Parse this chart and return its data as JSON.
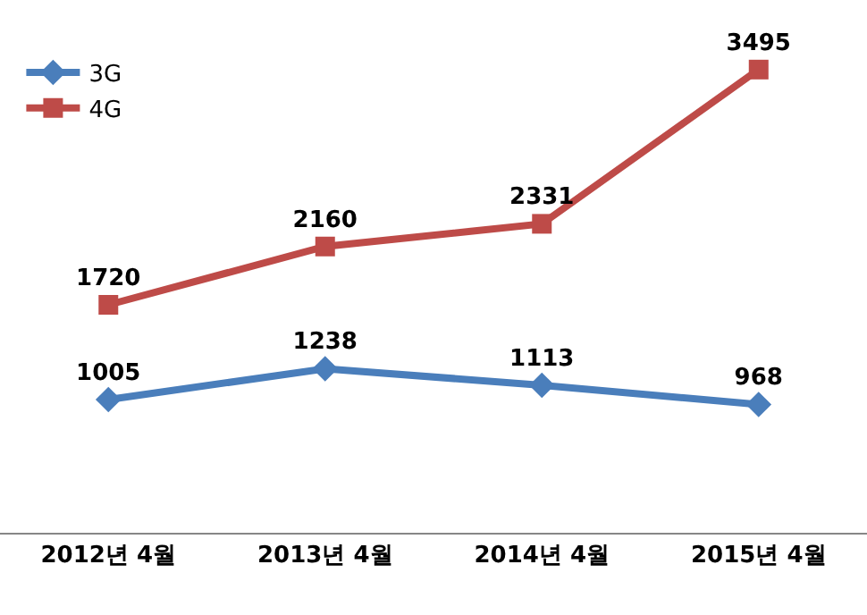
{
  "chart_data": {
    "type": "line",
    "categories": [
      "2012년 4월",
      "2013년 4월",
      "2014년 4월",
      "2015년 4월"
    ],
    "series": [
      {
        "name": "3G",
        "color": "#4a7ebb",
        "values": [
          1005,
          1238,
          1113,
          968
        ],
        "marker": "diamond"
      },
      {
        "name": "4G",
        "color": "#be4b48",
        "values": [
          1720,
          2160,
          2331,
          3495
        ],
        "marker": "square"
      }
    ],
    "data_labels": true,
    "legend": "top left",
    "line_style": "solid"
  }
}
